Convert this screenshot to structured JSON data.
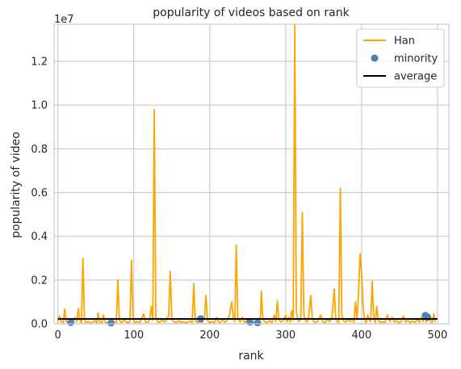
{
  "chart_data": {
    "type": "line",
    "title": "popularity of videos based on rank",
    "xlabel": "rank",
    "ylabel": "popularity of video",
    "y_offset_label": "1e7",
    "xlim": [
      -5,
      515
    ],
    "ylim": [
      0,
      13700000
    ],
    "x_ticks": [
      0,
      100,
      200,
      300,
      400,
      500
    ],
    "x_tick_labels": [
      "0",
      "100",
      "200",
      "300",
      "400",
      "500"
    ],
    "y_ticks": [
      0,
      2000000,
      4000000,
      6000000,
      8000000,
      10000000,
      12000000
    ],
    "y_tick_labels": [
      "0.0",
      "0.2",
      "0.4",
      "0.6",
      "0.8",
      "1.0",
      "1.2"
    ],
    "grid": true,
    "legend_position": "top-right",
    "colors": {
      "han": "#ffa500",
      "minority": "#4682b4",
      "average": "#000000"
    },
    "series": [
      {
        "name": "Han",
        "kind": "line",
        "points": [
          [
            0,
            80000
          ],
          [
            2,
            350000
          ],
          [
            4,
            120000
          ],
          [
            7,
            50000
          ],
          [
            9,
            680000
          ],
          [
            11,
            100000
          ],
          [
            14,
            30000
          ],
          [
            17,
            200000
          ],
          [
            20,
            60000
          ],
          [
            23,
            300000
          ],
          [
            25,
            90000
          ],
          [
            27,
            700000
          ],
          [
            29,
            150000
          ],
          [
            31,
            40000
          ],
          [
            33,
            3000000
          ],
          [
            35,
            200000
          ],
          [
            37,
            50000
          ],
          [
            40,
            120000
          ],
          [
            43,
            30000
          ],
          [
            46,
            80000
          ],
          [
            49,
            150000
          ],
          [
            51,
            40000
          ],
          [
            53,
            500000
          ],
          [
            55,
            100000
          ],
          [
            58,
            50000
          ],
          [
            60,
            400000
          ],
          [
            62,
            80000
          ],
          [
            65,
            30000
          ],
          [
            68,
            120000
          ],
          [
            71,
            50000
          ],
          [
            74,
            100000
          ],
          [
            77,
            60000
          ],
          [
            79,
            2000000
          ],
          [
            81,
            150000
          ],
          [
            84,
            50000
          ],
          [
            87,
            200000
          ],
          [
            90,
            80000
          ],
          [
            93,
            40000
          ],
          [
            95,
            120000
          ],
          [
            97,
            2900000
          ],
          [
            99,
            200000
          ],
          [
            102,
            60000
          ],
          [
            105,
            100000
          ],
          [
            108,
            50000
          ],
          [
            111,
            300000
          ],
          [
            113,
            450000
          ],
          [
            115,
            100000
          ],
          [
            118,
            50000
          ],
          [
            121,
            200000
          ],
          [
            123,
            800000
          ],
          [
            125,
            150000
          ],
          [
            127,
            9800000
          ],
          [
            129,
            300000
          ],
          [
            131,
            100000
          ],
          [
            134,
            50000
          ],
          [
            137,
            200000
          ],
          [
            140,
            80000
          ],
          [
            143,
            150000
          ],
          [
            146,
            400000
          ],
          [
            148,
            2400000
          ],
          [
            150,
            200000
          ],
          [
            153,
            80000
          ],
          [
            156,
            50000
          ],
          [
            159,
            150000
          ],
          [
            162,
            60000
          ],
          [
            165,
            100000
          ],
          [
            168,
            40000
          ],
          [
            171,
            80000
          ],
          [
            174,
            120000
          ],
          [
            177,
            50000
          ],
          [
            179,
            1850000
          ],
          [
            181,
            150000
          ],
          [
            184,
            50000
          ],
          [
            187,
            100000
          ],
          [
            190,
            60000
          ],
          [
            193,
            300000
          ],
          [
            195,
            1300000
          ],
          [
            197,
            150000
          ],
          [
            200,
            50000
          ],
          [
            203,
            100000
          ],
          [
            206,
            40000
          ],
          [
            209,
            300000
          ],
          [
            211,
            100000
          ],
          [
            214,
            50000
          ],
          [
            217,
            200000
          ],
          [
            220,
            60000
          ],
          [
            223,
            150000
          ],
          [
            226,
            400000
          ],
          [
            229,
            1000000
          ],
          [
            231,
            300000
          ],
          [
            233,
            100000
          ],
          [
            235,
            3600000
          ],
          [
            237,
            200000
          ],
          [
            240,
            80000
          ],
          [
            243,
            300000
          ],
          [
            246,
            50000
          ],
          [
            249,
            150000
          ],
          [
            252,
            60000
          ],
          [
            255,
            100000
          ],
          [
            258,
            40000
          ],
          [
            261,
            120000
          ],
          [
            264,
            50000
          ],
          [
            267,
            400000
          ],
          [
            268,
            1500000
          ],
          [
            270,
            200000
          ],
          [
            273,
            80000
          ],
          [
            276,
            50000
          ],
          [
            279,
            150000
          ],
          [
            282,
            60000
          ],
          [
            285,
            400000
          ],
          [
            287,
            100000
          ],
          [
            289,
            1050000
          ],
          [
            291,
            200000
          ],
          [
            294,
            80000
          ],
          [
            297,
            150000
          ],
          [
            300,
            400000
          ],
          [
            302,
            100000
          ],
          [
            304,
            300000
          ],
          [
            306,
            80000
          ],
          [
            308,
            600000
          ],
          [
            310,
            150000
          ],
          [
            312,
            13700000
          ],
          [
            314,
            600000
          ],
          [
            316,
            200000
          ],
          [
            318,
            100000
          ],
          [
            320,
            300000
          ],
          [
            322,
            5100000
          ],
          [
            324,
            400000
          ],
          [
            326,
            150000
          ],
          [
            328,
            80000
          ],
          [
            330,
            200000
          ],
          [
            333,
            1300000
          ],
          [
            335,
            300000
          ],
          [
            337,
            100000
          ],
          [
            340,
            50000
          ],
          [
            343,
            150000
          ],
          [
            346,
            400000
          ],
          [
            349,
            100000
          ],
          [
            352,
            50000
          ],
          [
            355,
            200000
          ],
          [
            358,
            100000
          ],
          [
            361,
            300000
          ],
          [
            364,
            1600000
          ],
          [
            366,
            200000
          ],
          [
            368,
            100000
          ],
          [
            370,
            50000
          ],
          [
            372,
            6200000
          ],
          [
            374,
            400000
          ],
          [
            376,
            150000
          ],
          [
            378,
            100000
          ],
          [
            380,
            80000
          ],
          [
            382,
            200000
          ],
          [
            385,
            100000
          ],
          [
            388,
            250000
          ],
          [
            390,
            60000
          ],
          [
            392,
            1000000
          ],
          [
            394,
            200000
          ],
          [
            396,
            1400000
          ],
          [
            398,
            3200000
          ],
          [
            400,
            2300000
          ],
          [
            402,
            800000
          ],
          [
            404,
            150000
          ],
          [
            406,
            50000
          ],
          [
            408,
            400000
          ],
          [
            410,
            200000
          ],
          [
            412,
            100000
          ],
          [
            414,
            1950000
          ],
          [
            416,
            300000
          ],
          [
            418,
            50000
          ],
          [
            420,
            800000
          ],
          [
            422,
            150000
          ],
          [
            425,
            60000
          ],
          [
            428,
            100000
          ],
          [
            431,
            50000
          ],
          [
            434,
            400000
          ],
          [
            437,
            100000
          ],
          [
            440,
            300000
          ],
          [
            443,
            80000
          ],
          [
            446,
            150000
          ],
          [
            449,
            40000
          ],
          [
            452,
            100000
          ],
          [
            455,
            350000
          ],
          [
            458,
            80000
          ],
          [
            461,
            150000
          ],
          [
            464,
            50000
          ],
          [
            467,
            120000
          ],
          [
            470,
            60000
          ],
          [
            473,
            200000
          ],
          [
            476,
            80000
          ],
          [
            479,
            300000
          ],
          [
            481,
            100000
          ],
          [
            483,
            400000
          ],
          [
            485,
            80000
          ],
          [
            487,
            200000
          ],
          [
            489,
            450000
          ],
          [
            491,
            100000
          ],
          [
            493,
            50000
          ],
          [
            495,
            450000
          ],
          [
            497,
            80000
          ]
        ]
      },
      {
        "name": "minority",
        "kind": "scatter",
        "points": [
          [
            17,
            60000
          ],
          [
            70,
            40000
          ],
          [
            188,
            230000
          ],
          [
            253,
            80000
          ],
          [
            263,
            50000
          ],
          [
            484,
            380000
          ],
          [
            487,
            300000
          ]
        ]
      },
      {
        "name": "average",
        "kind": "hline",
        "points": [
          [
            0,
            220000
          ],
          [
            500,
            220000
          ]
        ]
      }
    ]
  }
}
